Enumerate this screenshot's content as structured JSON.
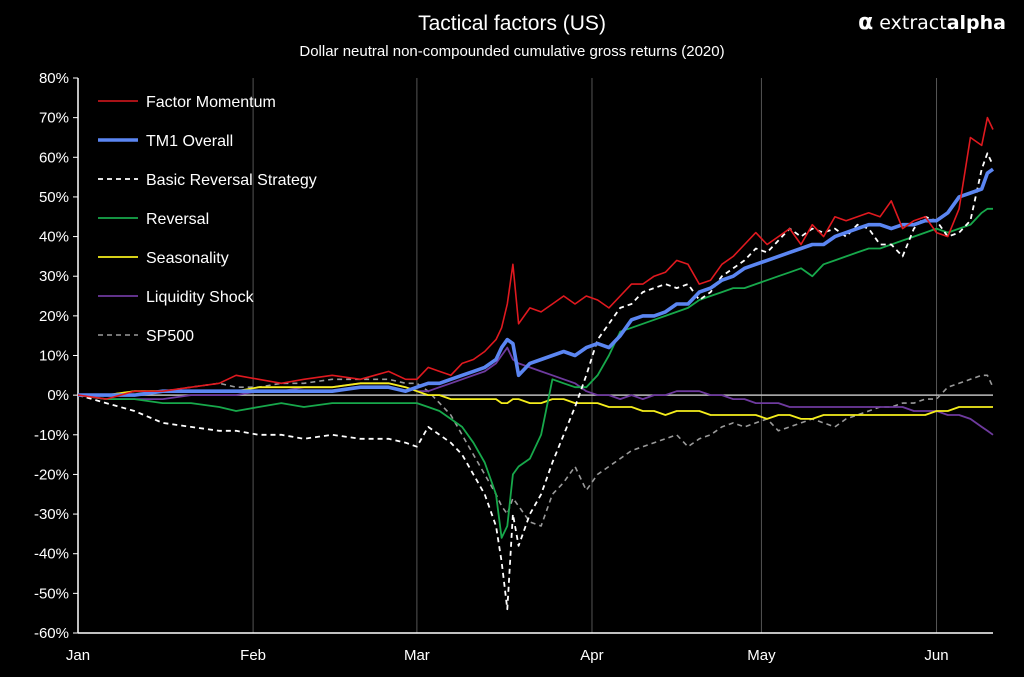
{
  "brand": {
    "icon": "alpha-logo-icon",
    "name_part1": "extract",
    "name_part2": "alpha"
  },
  "chart_data": {
    "type": "line",
    "title": "Tactical factors (US)",
    "subtitle": "Dollar neutral non-compounded cumulative gross returns (2020)",
    "xlabel": "",
    "ylabel": "",
    "x_ticks": [
      "Jan",
      "Feb",
      "Mar",
      "Apr",
      "May",
      "Jun"
    ],
    "x_tick_days": [
      0,
      31,
      60,
      91,
      121,
      152
    ],
    "xlim_days": [
      0,
      162
    ],
    "ylim": [
      -60,
      80
    ],
    "y_ticks": [
      -60,
      -50,
      -40,
      -30,
      -20,
      -10,
      0,
      10,
      20,
      30,
      40,
      50,
      60,
      70,
      80
    ],
    "y_tick_labels": [
      "-60%",
      "-50%",
      "-40%",
      "-30%",
      "-20%",
      "-10%",
      "0%",
      "10%",
      "20%",
      "30%",
      "40%",
      "50%",
      "60%",
      "70%",
      "80%"
    ],
    "grid": "vertical-at-month-starts",
    "legend_position": "top-left",
    "colors": {
      "background": "#000000",
      "axis": "#ffffff",
      "grid": "#555555"
    },
    "x_unit": "day-of-year-2020",
    "series": [
      {
        "name": "Factor Momentum",
        "color": "#e0191f",
        "width": 1.6,
        "dash": "",
        "x": [
          0,
          5,
          10,
          15,
          20,
          25,
          28,
          32,
          36,
          40,
          45,
          50,
          55,
          58,
          60,
          62,
          64,
          66,
          68,
          70,
          72,
          74,
          75,
          76,
          77,
          78,
          80,
          82,
          84,
          86,
          88,
          90,
          92,
          94,
          96,
          98,
          100,
          102,
          104,
          106,
          108,
          110,
          112,
          114,
          116,
          118,
          120,
          122,
          124,
          126,
          128,
          130,
          132,
          134,
          136,
          138,
          140,
          142,
          144,
          146,
          148,
          150,
          152,
          154,
          156,
          158,
          160,
          161,
          162
        ],
        "y": [
          0,
          -1,
          1,
          1,
          2,
          3,
          5,
          4,
          3,
          4,
          5,
          4,
          6,
          4,
          4,
          7,
          6,
          5,
          8,
          9,
          11,
          14,
          17,
          23,
          33,
          18,
          22,
          21,
          23,
          25,
          23,
          25,
          24,
          22,
          25,
          28,
          28,
          30,
          31,
          34,
          33,
          28,
          29,
          33,
          35,
          38,
          41,
          38,
          40,
          42,
          38,
          43,
          40,
          45,
          44,
          45,
          46,
          45,
          49,
          42,
          44,
          45,
          41,
          40,
          47,
          65,
          63,
          70,
          67
        ]
      },
      {
        "name": "TM1 Overall",
        "color": "#5b86f2",
        "width": 3.6,
        "dash": "",
        "x": [
          0,
          5,
          10,
          15,
          20,
          25,
          28,
          32,
          36,
          40,
          45,
          50,
          55,
          58,
          60,
          62,
          64,
          66,
          68,
          70,
          72,
          74,
          75,
          76,
          77,
          78,
          80,
          82,
          84,
          86,
          88,
          90,
          92,
          94,
          96,
          98,
          100,
          102,
          104,
          106,
          108,
          110,
          112,
          114,
          116,
          118,
          120,
          122,
          124,
          126,
          128,
          130,
          132,
          134,
          136,
          138,
          140,
          142,
          144,
          146,
          148,
          150,
          152,
          154,
          156,
          158,
          160,
          161,
          162
        ],
        "y": [
          0,
          0,
          0,
          1,
          1,
          1,
          1,
          1,
          1,
          1,
          1,
          2,
          2,
          1,
          2,
          3,
          3,
          4,
          5,
          6,
          7,
          9,
          12,
          14,
          13,
          5,
          8,
          9,
          10,
          11,
          10,
          12,
          13,
          12,
          15,
          19,
          20,
          20,
          21,
          23,
          23,
          26,
          27,
          29,
          30,
          32,
          33,
          34,
          35,
          36,
          37,
          38,
          38,
          40,
          41,
          42,
          43,
          43,
          42,
          43,
          43,
          44,
          44,
          46,
          50,
          51,
          52,
          56,
          57
        ]
      },
      {
        "name": "Basic Reversal Strategy",
        "color": "#ffffff",
        "width": 1.8,
        "dash": "5,4",
        "x": [
          0,
          5,
          10,
          15,
          20,
          25,
          28,
          32,
          36,
          40,
          45,
          50,
          55,
          58,
          60,
          62,
          64,
          66,
          68,
          70,
          72,
          74,
          75,
          76,
          77,
          78,
          80,
          82,
          84,
          86,
          88,
          90,
          92,
          94,
          96,
          98,
          100,
          102,
          104,
          106,
          108,
          110,
          112,
          114,
          116,
          118,
          120,
          122,
          124,
          126,
          128,
          130,
          132,
          134,
          136,
          138,
          140,
          142,
          144,
          146,
          148,
          150,
          152,
          154,
          156,
          158,
          160,
          161,
          162
        ],
        "y": [
          0,
          -2,
          -4,
          -7,
          -8,
          -9,
          -9,
          -10,
          -10,
          -11,
          -10,
          -11,
          -11,
          -12,
          -13,
          -8,
          -10,
          -12,
          -15,
          -20,
          -25,
          -33,
          -42,
          -54,
          -30,
          -38,
          -30,
          -25,
          -17,
          -10,
          -3,
          5,
          14,
          18,
          22,
          23,
          26,
          27,
          28,
          27,
          28,
          24,
          26,
          30,
          32,
          34,
          37,
          36,
          39,
          42,
          40,
          42,
          41,
          42,
          40,
          43,
          42,
          38,
          38,
          35,
          42,
          45,
          44,
          40,
          41,
          44,
          57,
          61,
          58
        ]
      },
      {
        "name": "Reversal",
        "color": "#17a84b",
        "width": 1.8,
        "dash": "",
        "x": [
          0,
          5,
          10,
          15,
          20,
          25,
          28,
          32,
          36,
          40,
          45,
          50,
          55,
          58,
          60,
          62,
          64,
          66,
          68,
          70,
          72,
          74,
          75,
          76,
          77,
          78,
          80,
          82,
          84,
          86,
          88,
          90,
          92,
          94,
          96,
          98,
          100,
          102,
          104,
          106,
          108,
          110,
          112,
          114,
          116,
          118,
          120,
          122,
          124,
          126,
          128,
          130,
          132,
          134,
          136,
          138,
          140,
          142,
          144,
          146,
          148,
          150,
          152,
          154,
          156,
          158,
          160,
          161,
          162
        ],
        "y": [
          0,
          -1,
          -1,
          -2,
          -2,
          -3,
          -4,
          -3,
          -2,
          -3,
          -2,
          -2,
          -2,
          -2,
          -2,
          -3,
          -4,
          -6,
          -8,
          -12,
          -17,
          -25,
          -36,
          -33,
          -20,
          -18,
          -16,
          -10,
          4,
          3,
          2,
          2,
          5,
          10,
          16,
          17,
          18,
          19,
          20,
          21,
          22,
          24,
          25,
          26,
          27,
          27,
          28,
          29,
          30,
          31,
          32,
          30,
          33,
          34,
          35,
          36,
          37,
          37,
          38,
          39,
          40,
          41,
          42,
          41,
          42,
          43,
          46,
          47,
          47
        ]
      },
      {
        "name": "Seasonality",
        "color": "#f5ee1c",
        "width": 1.8,
        "dash": "",
        "x": [
          0,
          5,
          10,
          15,
          20,
          25,
          28,
          32,
          36,
          40,
          45,
          50,
          55,
          58,
          60,
          62,
          64,
          66,
          68,
          70,
          72,
          74,
          75,
          76,
          77,
          78,
          80,
          82,
          84,
          86,
          88,
          90,
          92,
          94,
          96,
          98,
          100,
          102,
          104,
          106,
          108,
          110,
          112,
          114,
          116,
          118,
          120,
          122,
          124,
          126,
          128,
          130,
          132,
          134,
          136,
          138,
          140,
          142,
          144,
          146,
          148,
          150,
          152,
          154,
          156,
          158,
          160,
          161,
          162
        ],
        "y": [
          0,
          0,
          1,
          1,
          1,
          1,
          1,
          2,
          2,
          2,
          2,
          3,
          3,
          2,
          1,
          0,
          0,
          -1,
          -1,
          -1,
          -1,
          -1,
          -2,
          -2,
          -1,
          -1,
          -2,
          -2,
          -1,
          -1,
          -2,
          -2,
          -2,
          -3,
          -3,
          -3,
          -4,
          -4,
          -5,
          -4,
          -4,
          -4,
          -5,
          -5,
          -5,
          -5,
          -5,
          -6,
          -5,
          -5,
          -6,
          -6,
          -5,
          -5,
          -5,
          -5,
          -5,
          -5,
          -5,
          -5,
          -5,
          -5,
          -4,
          -4,
          -3,
          -3,
          -3,
          -3,
          -3
        ]
      },
      {
        "name": "Liquidity Shock",
        "color": "#6e3a9e",
        "width": 1.8,
        "dash": "",
        "x": [
          0,
          5,
          10,
          15,
          20,
          25,
          28,
          32,
          36,
          40,
          45,
          50,
          55,
          58,
          60,
          62,
          64,
          66,
          68,
          70,
          72,
          74,
          75,
          76,
          77,
          78,
          80,
          82,
          84,
          86,
          88,
          90,
          92,
          94,
          96,
          98,
          100,
          102,
          104,
          106,
          108,
          110,
          112,
          114,
          116,
          118,
          120,
          122,
          124,
          126,
          128,
          130,
          132,
          134,
          136,
          138,
          140,
          142,
          144,
          146,
          148,
          150,
          152,
          154,
          156,
          158,
          160,
          161,
          162
        ],
        "y": [
          0,
          -1,
          -1,
          -1,
          0,
          0,
          0,
          1,
          1,
          2,
          2,
          3,
          3,
          2,
          1,
          1,
          2,
          3,
          4,
          5,
          6,
          8,
          10,
          12,
          9,
          8,
          7,
          6,
          5,
          4,
          3,
          1,
          0,
          0,
          -1,
          0,
          -1,
          0,
          0,
          1,
          1,
          1,
          0,
          0,
          -1,
          -1,
          -2,
          -2,
          -2,
          -3,
          -3,
          -3,
          -3,
          -3,
          -3,
          -3,
          -3,
          -3,
          -3,
          -3,
          -4,
          -4,
          -4,
          -5,
          -5,
          -6,
          -8,
          -9,
          -10
        ]
      },
      {
        "name": "SP500",
        "color": "#9a9a9a",
        "width": 1.6,
        "dash": "5,4",
        "x": [
          0,
          5,
          10,
          15,
          20,
          25,
          28,
          32,
          36,
          40,
          45,
          50,
          55,
          58,
          60,
          62,
          64,
          66,
          68,
          70,
          72,
          74,
          75,
          76,
          77,
          78,
          80,
          82,
          84,
          86,
          88,
          90,
          92,
          94,
          96,
          98,
          100,
          102,
          104,
          106,
          108,
          110,
          112,
          114,
          116,
          118,
          120,
          122,
          124,
          126,
          128,
          130,
          132,
          134,
          136,
          138,
          140,
          142,
          144,
          146,
          148,
          150,
          152,
          154,
          156,
          158,
          160,
          161,
          162
        ],
        "y": [
          0,
          0,
          1,
          1,
          2,
          3,
          2,
          2,
          3,
          3,
          4,
          4,
          4,
          3,
          3,
          1,
          -2,
          -5,
          -10,
          -15,
          -20,
          -25,
          -28,
          -30,
          -26,
          -28,
          -32,
          -33,
          -25,
          -22,
          -18,
          -24,
          -20,
          -18,
          -16,
          -14,
          -13,
          -12,
          -11,
          -10,
          -13,
          -11,
          -10,
          -8,
          -7,
          -8,
          -7,
          -6,
          -9,
          -8,
          -7,
          -6,
          -7,
          -8,
          -6,
          -5,
          -4,
          -3,
          -3,
          -2,
          -2,
          -1,
          -1,
          2,
          3,
          4,
          5,
          5,
          2
        ]
      }
    ]
  }
}
